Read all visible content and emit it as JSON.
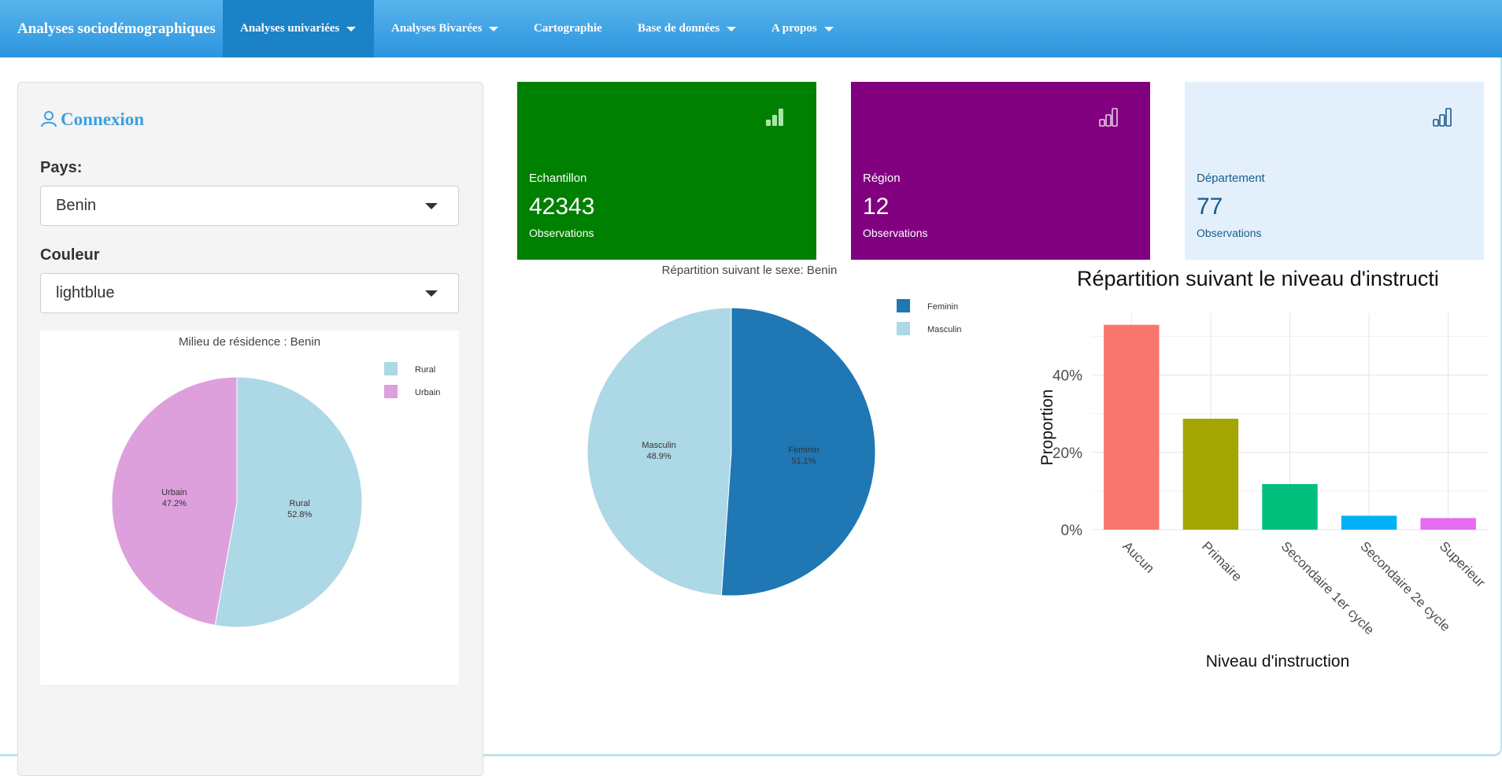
{
  "navbar": {
    "brand": "Analyses sociodémographiques",
    "items": [
      {
        "label": "Analyses univariées",
        "dropdown": true,
        "active": true
      },
      {
        "label": "Analyses Bivarées",
        "dropdown": true,
        "active": false
      },
      {
        "label": "Cartographie",
        "dropdown": false,
        "active": false
      },
      {
        "label": "Base de données",
        "dropdown": true,
        "active": false
      },
      {
        "label": "A propos",
        "dropdown": true,
        "active": false
      }
    ]
  },
  "sidebar": {
    "title": "Connexion",
    "title_icon": "user-icon",
    "pays": {
      "label": "Pays:",
      "value": "Benin"
    },
    "couleur": {
      "label": "Couleur",
      "value": "lightblue"
    }
  },
  "value_boxes": [
    {
      "label": "Echantillon",
      "value": "42343",
      "subtitle": "Observations",
      "icon": "signal-bars-icon",
      "background": "#008000",
      "text_color": "#ffffff",
      "icon_color": "#a8e6a8"
    },
    {
      "label": "Région",
      "value": "12",
      "subtitle": "Observations",
      "icon": "signal-bars-icon",
      "background": "#800080",
      "text_color": "#ffffff",
      "icon_color": "#e8c8e8"
    },
    {
      "label": "Département",
      "value": "77",
      "subtitle": "Observations",
      "icon": "signal-bars-icon",
      "background": "#e3f0fb",
      "text_color": "#1a5b8c",
      "icon_color": "#1a5b8c"
    }
  ],
  "chart_data": [
    {
      "type": "pie",
      "title": "Milieu de résidence : Benin",
      "labels": [
        "Rural",
        "Urbain"
      ],
      "values": [
        52.8,
        47.2
      ],
      "slice_text": [
        "52.8%",
        "47.2%"
      ],
      "colors": [
        "#add8e6",
        "#dda0dd"
      ],
      "legend": "top-right"
    },
    {
      "type": "pie",
      "title": "Répartition suivant le sexe: Benin",
      "labels": [
        "Feminin",
        "Masculin"
      ],
      "values": [
        51.1,
        48.9
      ],
      "slice_text": [
        "51.1%",
        "48.9%"
      ],
      "colors": [
        "#1f77b4",
        "#add8e6"
      ],
      "legend": "top-right"
    },
    {
      "type": "bar",
      "title": "Répartition suivant le niveau d'instructi",
      "categories": [
        "Aucun",
        "Primaire",
        "Secondaire 1er cycle",
        "Secondaire 2e cycle",
        "Superieur"
      ],
      "values": [
        53,
        28.7,
        11.8,
        3.6,
        3.0
      ],
      "colors": [
        "#f8766d",
        "#a3a500",
        "#00bf7d",
        "#00b0f6",
        "#e76bf3"
      ],
      "xlabel": "Niveau d'instruction",
      "ylabel": "Proportion",
      "ylim": [
        0,
        56
      ],
      "yticks": [
        0,
        20,
        40
      ],
      "ytick_labels": [
        "0%",
        "20%",
        "40%"
      ],
      "grid": true
    }
  ]
}
